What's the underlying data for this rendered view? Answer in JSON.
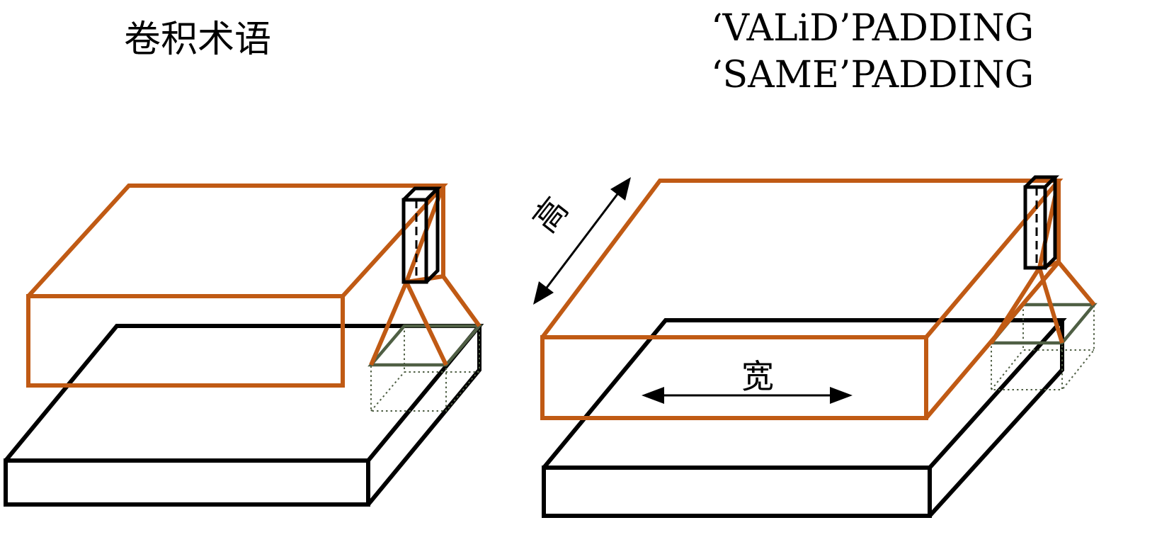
{
  "titles": {
    "main": "卷积术语",
    "valid": "‘VALiD’PADDING",
    "same": "‘SAME’PADDING"
  },
  "labels": {
    "height": "高",
    "width": "宽"
  },
  "colors": {
    "output_volume": "#c05a14",
    "input_volume": "#000000",
    "receptive_field": "#4f5f44"
  }
}
